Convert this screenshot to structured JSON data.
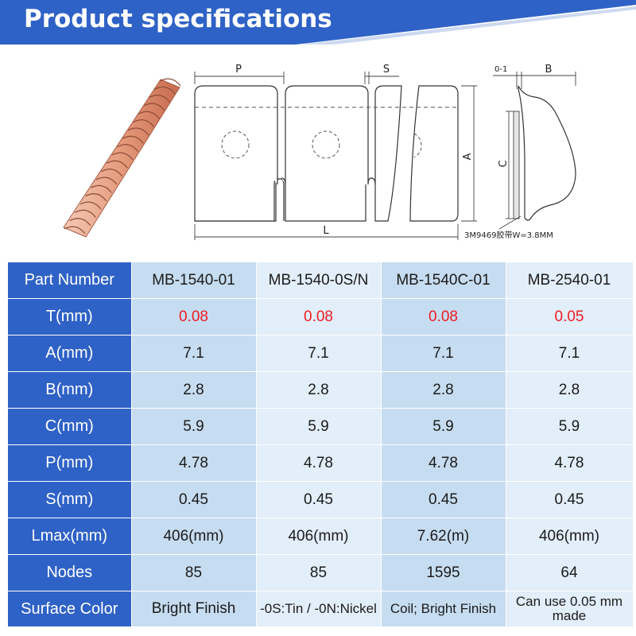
{
  "banner": {
    "title": "Product specifications",
    "color": "#2f62c6"
  },
  "drawing": {
    "label_p": "P",
    "label_s": "S",
    "label_a": "A",
    "label_l": "L",
    "label_01": "0-1",
    "label_b": "B",
    "label_c": "C",
    "tape_note": "3M9469胶带W=3.8MM"
  },
  "table": {
    "colors": {
      "header_bg": "#2f62c6",
      "cell_a": "#c6dcf0",
      "cell_b": "#e2eef9",
      "highlight": "#ee1c25"
    },
    "rows": [
      {
        "label": "Part Number",
        "values": [
          "MB-1540-01",
          "MB-1540-0S/N",
          "MB-1540C-01",
          "MB-2540-01"
        ]
      },
      {
        "label": "T(mm)",
        "values": [
          "0.08",
          "0.08",
          "0.08",
          "0.05"
        ]
      },
      {
        "label": "A(mm)",
        "values": [
          "7.1",
          "7.1",
          "7.1",
          "7.1"
        ]
      },
      {
        "label": "B(mm)",
        "values": [
          "2.8",
          "2.8",
          "2.8",
          "2.8"
        ]
      },
      {
        "label": "C(mm)",
        "values": [
          "5.9",
          "5.9",
          "5.9",
          "5.9"
        ]
      },
      {
        "label": "P(mm)",
        "values": [
          "4.78",
          "4.78",
          "4.78",
          "4.78"
        ]
      },
      {
        "label": "S(mm)",
        "values": [
          "0.45",
          "0.45",
          "0.45",
          "0.45"
        ]
      },
      {
        "label": "Lmax(mm)",
        "values": [
          "406(mm)",
          "406(mm)",
          "7.62(m)",
          "406(mm)"
        ]
      },
      {
        "label": "Nodes",
        "values": [
          "85",
          "85",
          "1595",
          "64"
        ]
      },
      {
        "label": "Surface Color",
        "values": [
          "Bright Finish",
          "-0S:Tin / -0N:Nickel",
          "Coil; Bright Finish",
          "Can use 0.05 mm made"
        ]
      }
    ]
  }
}
